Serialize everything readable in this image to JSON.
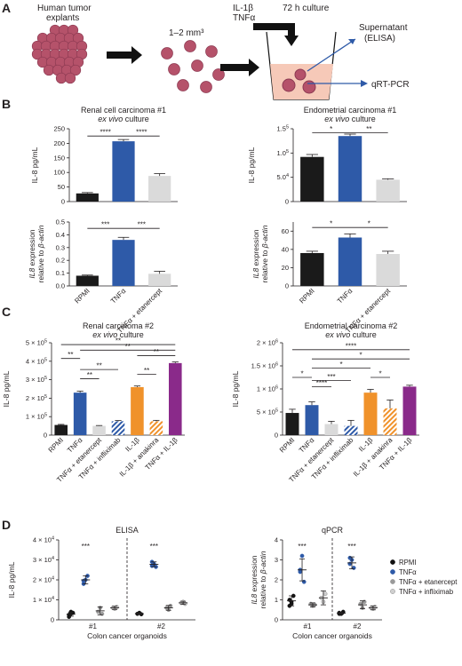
{
  "colors": {
    "black": "#1a1a1a",
    "blue": "#2e5aa8",
    "grey": "#dadada",
    "orange": "#f0922b",
    "peach": "#f4b183",
    "purple": "#8a2a8a",
    "stripe_blue": "#2e5aa8",
    "stripe_orange": "#f0922b",
    "dot_black": "#111111",
    "dot_blue": "#2e5aa8",
    "dot_grey": "#9a9a9a",
    "dot_light": "#cfcfcf",
    "tissue": "#b5526a",
    "tissue_dark": "#8c3a52",
    "medium": "#f6c9b8"
  },
  "panel_a": {
    "letter": "A",
    "explants_label_1": "Human tumor",
    "explants_label_2": "explants",
    "size_label": "1–2 mm³",
    "stim_1": "IL-1β",
    "stim_2": "TNFα",
    "culture": "72 h culture",
    "supernatant": "Supernatant",
    "elisa": "(ELISA)",
    "qpcr": "qRT-PCR"
  },
  "panel_b": {
    "letter": "B"
  },
  "panel_c": {
    "letter": "C"
  },
  "panel_d": {
    "letter": "D"
  },
  "chart_data": [
    {
      "id": "B-renal-elisa",
      "type": "bar",
      "title": "Renal cell carcinoma #1",
      "subtitle_italic": "ex vivo",
      "subtitle_rest": " culture",
      "ylabel": "IL-8 pg/mL",
      "categories": [
        "RPMI",
        "TNFα",
        "TNFα + etanercept"
      ],
      "values": [
        28,
        207,
        88
      ],
      "errors": [
        3,
        6,
        8
      ],
      "colors": [
        "black",
        "blue",
        "grey"
      ],
      "ylim": [
        0,
        250
      ],
      "yticks": [
        "0",
        "50",
        "100",
        "150",
        "200",
        "250"
      ],
      "significance": [
        {
          "from": 0,
          "to": 1,
          "label": "****",
          "y": 225
        },
        {
          "from": 1,
          "to": 2,
          "label": "****",
          "y": 225
        }
      ]
    },
    {
      "id": "B-endometrial-elisa",
      "type": "bar",
      "title": "Endometrial carcinoma #1",
      "subtitle_italic": "ex vivo",
      "subtitle_rest": " culture",
      "ylabel": "IL-8 pg/mL",
      "categories": [
        "RPMI",
        "TNFα",
        "TNFα + etanercept"
      ],
      "values": [
        92000,
        135000,
        45000
      ],
      "errors": [
        5000,
        4000,
        2000
      ],
      "colors": [
        "black",
        "blue",
        "grey"
      ],
      "ylim": [
        0,
        150000
      ],
      "yticks": [
        {
          "v": 0,
          "m": "0"
        },
        {
          "v": 50000,
          "m": "5.0",
          "e": "4"
        },
        {
          "v": 100000,
          "m": "1.0",
          "e": "5"
        },
        {
          "v": 150000,
          "m": "1.5",
          "e": "5"
        }
      ],
      "significance": [
        {
          "from": 0,
          "to": 1,
          "label": "*",
          "y": 142000
        },
        {
          "from": 1,
          "to": 2,
          "label": "**",
          "y": 142000
        }
      ]
    },
    {
      "id": "B-renal-qpcr",
      "type": "bar",
      "ylabel_italic": "IL8",
      "ylabel_rest": " expression",
      "ylabel2_pre": "relative to ",
      "ylabel2_italic": "β-actin",
      "categories": [
        "RPMI",
        "TNFα",
        "TNFα + etanercept"
      ],
      "values": [
        0.08,
        0.36,
        0.095
      ],
      "errors": [
        0.005,
        0.02,
        0.02
      ],
      "colors": [
        "black",
        "blue",
        "grey"
      ],
      "ylim": [
        0,
        0.5
      ],
      "yticks": [
        "0.0",
        "0.1",
        "0.2",
        "0.3",
        "0.4",
        "0.5"
      ],
      "significance": [
        {
          "from": 0,
          "to": 1,
          "label": "***",
          "y": 0.45
        },
        {
          "from": 1,
          "to": 2,
          "label": "***",
          "y": 0.45
        }
      ]
    },
    {
      "id": "B-endometrial-qpcr",
      "type": "bar",
      "ylabel_italic": "IL8",
      "ylabel_rest": " expression",
      "ylabel2_pre": "relative to ",
      "ylabel2_italic": "β-actin",
      "categories": [
        "RPMI",
        "TNFα",
        "TNFα + etanercept"
      ],
      "values": [
        36,
        53,
        35
      ],
      "errors": [
        2,
        4,
        3
      ],
      "colors": [
        "black",
        "blue",
        "grey"
      ],
      "ylim": [
        0,
        70
      ],
      "yticks": [
        "0",
        "20",
        "40",
        "60"
      ],
      "significance": [
        {
          "from": 0,
          "to": 1,
          "label": "*",
          "y": 64
        },
        {
          "from": 1,
          "to": 2,
          "label": "*",
          "y": 64
        }
      ]
    },
    {
      "id": "C-renal",
      "type": "bar",
      "title": "Renal carcinoma #2",
      "subtitle_italic": "ex vivo",
      "subtitle_rest": " culture",
      "ylabel": "IL-8 pg/mL",
      "categories": [
        "RPMI",
        "TNFα",
        "TNFα + etanercept",
        "TNFα + infliximab",
        "IL-1β",
        "IL-1β + anakinra",
        "TNFα + IL-1β"
      ],
      "values": [
        55000,
        230000,
        50000,
        75000,
        260000,
        75000,
        390000
      ],
      "errors": [
        3000,
        8000,
        2000,
        4000,
        6000,
        5000,
        6000
      ],
      "colors": [
        "black",
        "blue",
        "grey",
        "stripe_blue",
        "orange",
        "stripe_orange",
        "purple"
      ],
      "ylim": [
        0,
        500000
      ],
      "yticks": [
        {
          "v": 0,
          "m": "0"
        },
        {
          "v": 100000,
          "m": "1 × 10",
          "e": "5"
        },
        {
          "v": 200000,
          "m": "2 × 10",
          "e": "5"
        },
        {
          "v": 300000,
          "m": "3 × 10",
          "e": "5"
        },
        {
          "v": 400000,
          "m": "4 × 10",
          "e": "5"
        },
        {
          "v": 500000,
          "m": "5 × 10",
          "e": "5"
        }
      ],
      "significance": [
        {
          "from": 0,
          "to": 1,
          "label": "**",
          "y": 415000
        },
        {
          "from": 1,
          "to": 2,
          "label": "**",
          "y": 305000
        },
        {
          "from": 1,
          "to": 3,
          "label": "**",
          "y": 355000
        },
        {
          "from": 4,
          "to": 5,
          "label": "**",
          "y": 330000
        },
        {
          "from": 1,
          "to": 6,
          "label": "**",
          "y": 460000
        },
        {
          "from": 4,
          "to": 6,
          "label": "**",
          "y": 430000
        },
        {
          "from": 0,
          "to": 6,
          "label": "**",
          "y": 490000
        }
      ]
    },
    {
      "id": "C-endometrial",
      "type": "bar",
      "title": "Endometrial carcinoma #2",
      "subtitle_italic": "ex vivo",
      "subtitle_rest": " culture",
      "ylabel": "IL-8 pg/mL",
      "categories": [
        "RPMI",
        "TNFα",
        "TNFα + etanercept",
        "TNFα + infliximab",
        "IL-1β",
        "IL-1β + anakinra",
        "TNFα + IL-1β"
      ],
      "values": [
        480000,
        650000,
        240000,
        200000,
        920000,
        580000,
        1050000
      ],
      "errors": [
        80000,
        70000,
        60000,
        120000,
        70000,
        180000,
        30000
      ],
      "colors": [
        "black",
        "blue",
        "grey",
        "stripe_blue",
        "orange",
        "stripe_orange",
        "purple"
      ],
      "ylim": [
        0,
        2000000
      ],
      "yticks": [
        {
          "v": 0,
          "m": "0"
        },
        {
          "v": 500000,
          "m": "5 × 10",
          "e": "5"
        },
        {
          "v": 1000000,
          "m": "1 × 10",
          "e": "6"
        },
        {
          "v": 1500000,
          "m": "1.5 × 10",
          "e": "6"
        },
        {
          "v": 2000000,
          "m": "2 × 10",
          "e": "6"
        }
      ],
      "significance": [
        {
          "from": 0,
          "to": 1,
          "label": "*",
          "y": 1250000
        },
        {
          "from": 1,
          "to": 2,
          "label": "****",
          "y": 1050000
        },
        {
          "from": 1,
          "to": 3,
          "label": "***",
          "y": 1180000
        },
        {
          "from": 4,
          "to": 5,
          "label": "*",
          "y": 1250000
        },
        {
          "from": 1,
          "to": 4,
          "label": "*",
          "y": 1450000
        },
        {
          "from": 1,
          "to": 6,
          "label": "*",
          "y": 1650000
        },
        {
          "from": 0,
          "to": 6,
          "label": "****",
          "y": 1850000
        }
      ]
    },
    {
      "id": "D-elisa",
      "type": "scatter",
      "title": "ELISA",
      "ylabel": "IL-8 pg/mL",
      "xlabel": "Colon cancer organoids",
      "groups": [
        "#1",
        "#2"
      ],
      "ylim": [
        0,
        40000
      ],
      "yticks": [
        {
          "v": 0,
          "m": "0"
        },
        {
          "v": 10000,
          "m": "1 × 10",
          "e": "4"
        },
        {
          "v": 20000,
          "m": "2 × 10",
          "e": "4"
        },
        {
          "v": 30000,
          "m": "3 × 10",
          "e": "4"
        },
        {
          "v": 40000,
          "m": "4 × 10",
          "e": "4"
        }
      ],
      "series": [
        {
          "name": "RPMI",
          "marker": "dot_black",
          "points": [
            [
              2500,
              3000,
              3500,
              1500,
              4000
            ],
            [
              3000,
              3500,
              2800
            ]
          ],
          "means": [
            2800,
            3100
          ],
          "sd": [
            1000,
            400
          ]
        },
        {
          "name": "TNFα",
          "marker": "dot_blue",
          "points": [
            [
              18000,
              20000,
              22000,
              19500
            ],
            [
              27000,
              28000,
              26500,
              29000
            ]
          ],
          "means": [
            20000,
            27800
          ],
          "sd": [
            2000,
            1200
          ]
        },
        {
          "name": "TNFα + etanercept",
          "marker": "dot_grey",
          "points": [
            [
              4000,
              6000,
              3000
            ],
            [
              6000,
              5000,
              7000
            ]
          ],
          "means": [
            4500,
            6000
          ],
          "sd": [
            2000,
            1200
          ]
        },
        {
          "name": "TNFα + infliximab",
          "marker": "dot_light",
          "points": [
            [
              6000,
              5500,
              6500
            ],
            [
              8500,
              9000,
              8000
            ]
          ],
          "means": [
            6000,
            8500
          ],
          "sd": [
            800,
            800
          ]
        }
      ],
      "significance": [
        {
          "group": 0,
          "label": "***"
        },
        {
          "group": 1,
          "label": "***"
        }
      ]
    },
    {
      "id": "D-qpcr",
      "type": "scatter",
      "title": "qPCR",
      "ylabel_italic": "IL8",
      "ylabel_rest": " expression",
      "ylabel2_pre": "relative to ",
      "ylabel2_italic": "β-actin",
      "xlabel": "Colon cancer organoids",
      "groups": [
        "#1",
        "#2"
      ],
      "ylim": [
        0,
        4
      ],
      "yticks": [
        "0",
        "1",
        "2",
        "3",
        "4"
      ],
      "series": [
        {
          "name": "RPMI",
          "marker": "dot_black",
          "points": [
            [
              1.0,
              0.8,
              1.2,
              0.7,
              0.9
            ],
            [
              0.35,
              0.3,
              0.4,
              0.3
            ]
          ],
          "means": [
            0.95,
            0.33
          ],
          "sd": [
            0.25,
            0.05
          ]
        },
        {
          "name": "TNFα",
          "marker": "dot_blue",
          "points": [
            [
              2.5,
              3.2,
              1.9,
              2.4
            ],
            [
              2.8,
              3.0,
              2.6,
              3.1
            ]
          ],
          "means": [
            2.5,
            2.85
          ],
          "sd": [
            0.55,
            0.3
          ]
        },
        {
          "name": "TNFα + etanercept",
          "marker": "dot_grey",
          "points": [
            [
              0.8,
              0.7,
              0.75
            ],
            [
              0.8,
              0.6,
              0.9
            ]
          ],
          "means": [
            0.75,
            0.75
          ],
          "sd": [
            0.1,
            0.2
          ]
        },
        {
          "name": "TNFα + infliximab",
          "marker": "dot_light",
          "points": [
            [
              1.1,
              0.9,
              1.3
            ],
            [
              0.6,
              0.55,
              0.65
            ]
          ],
          "means": [
            1.1,
            0.6
          ],
          "sd": [
            0.35,
            0.1
          ]
        }
      ],
      "significance": [
        {
          "group": 0,
          "label": "***"
        },
        {
          "group": 1,
          "label": "***"
        }
      ]
    }
  ],
  "legend_d": [
    {
      "label": "RPMI",
      "marker": "dot_black"
    },
    {
      "label": "TNFα",
      "marker": "dot_blue"
    },
    {
      "label": "TNFα + etanercept",
      "marker": "dot_grey"
    },
    {
      "label": "TNFα + infliximab",
      "marker": "dot_light"
    }
  ]
}
